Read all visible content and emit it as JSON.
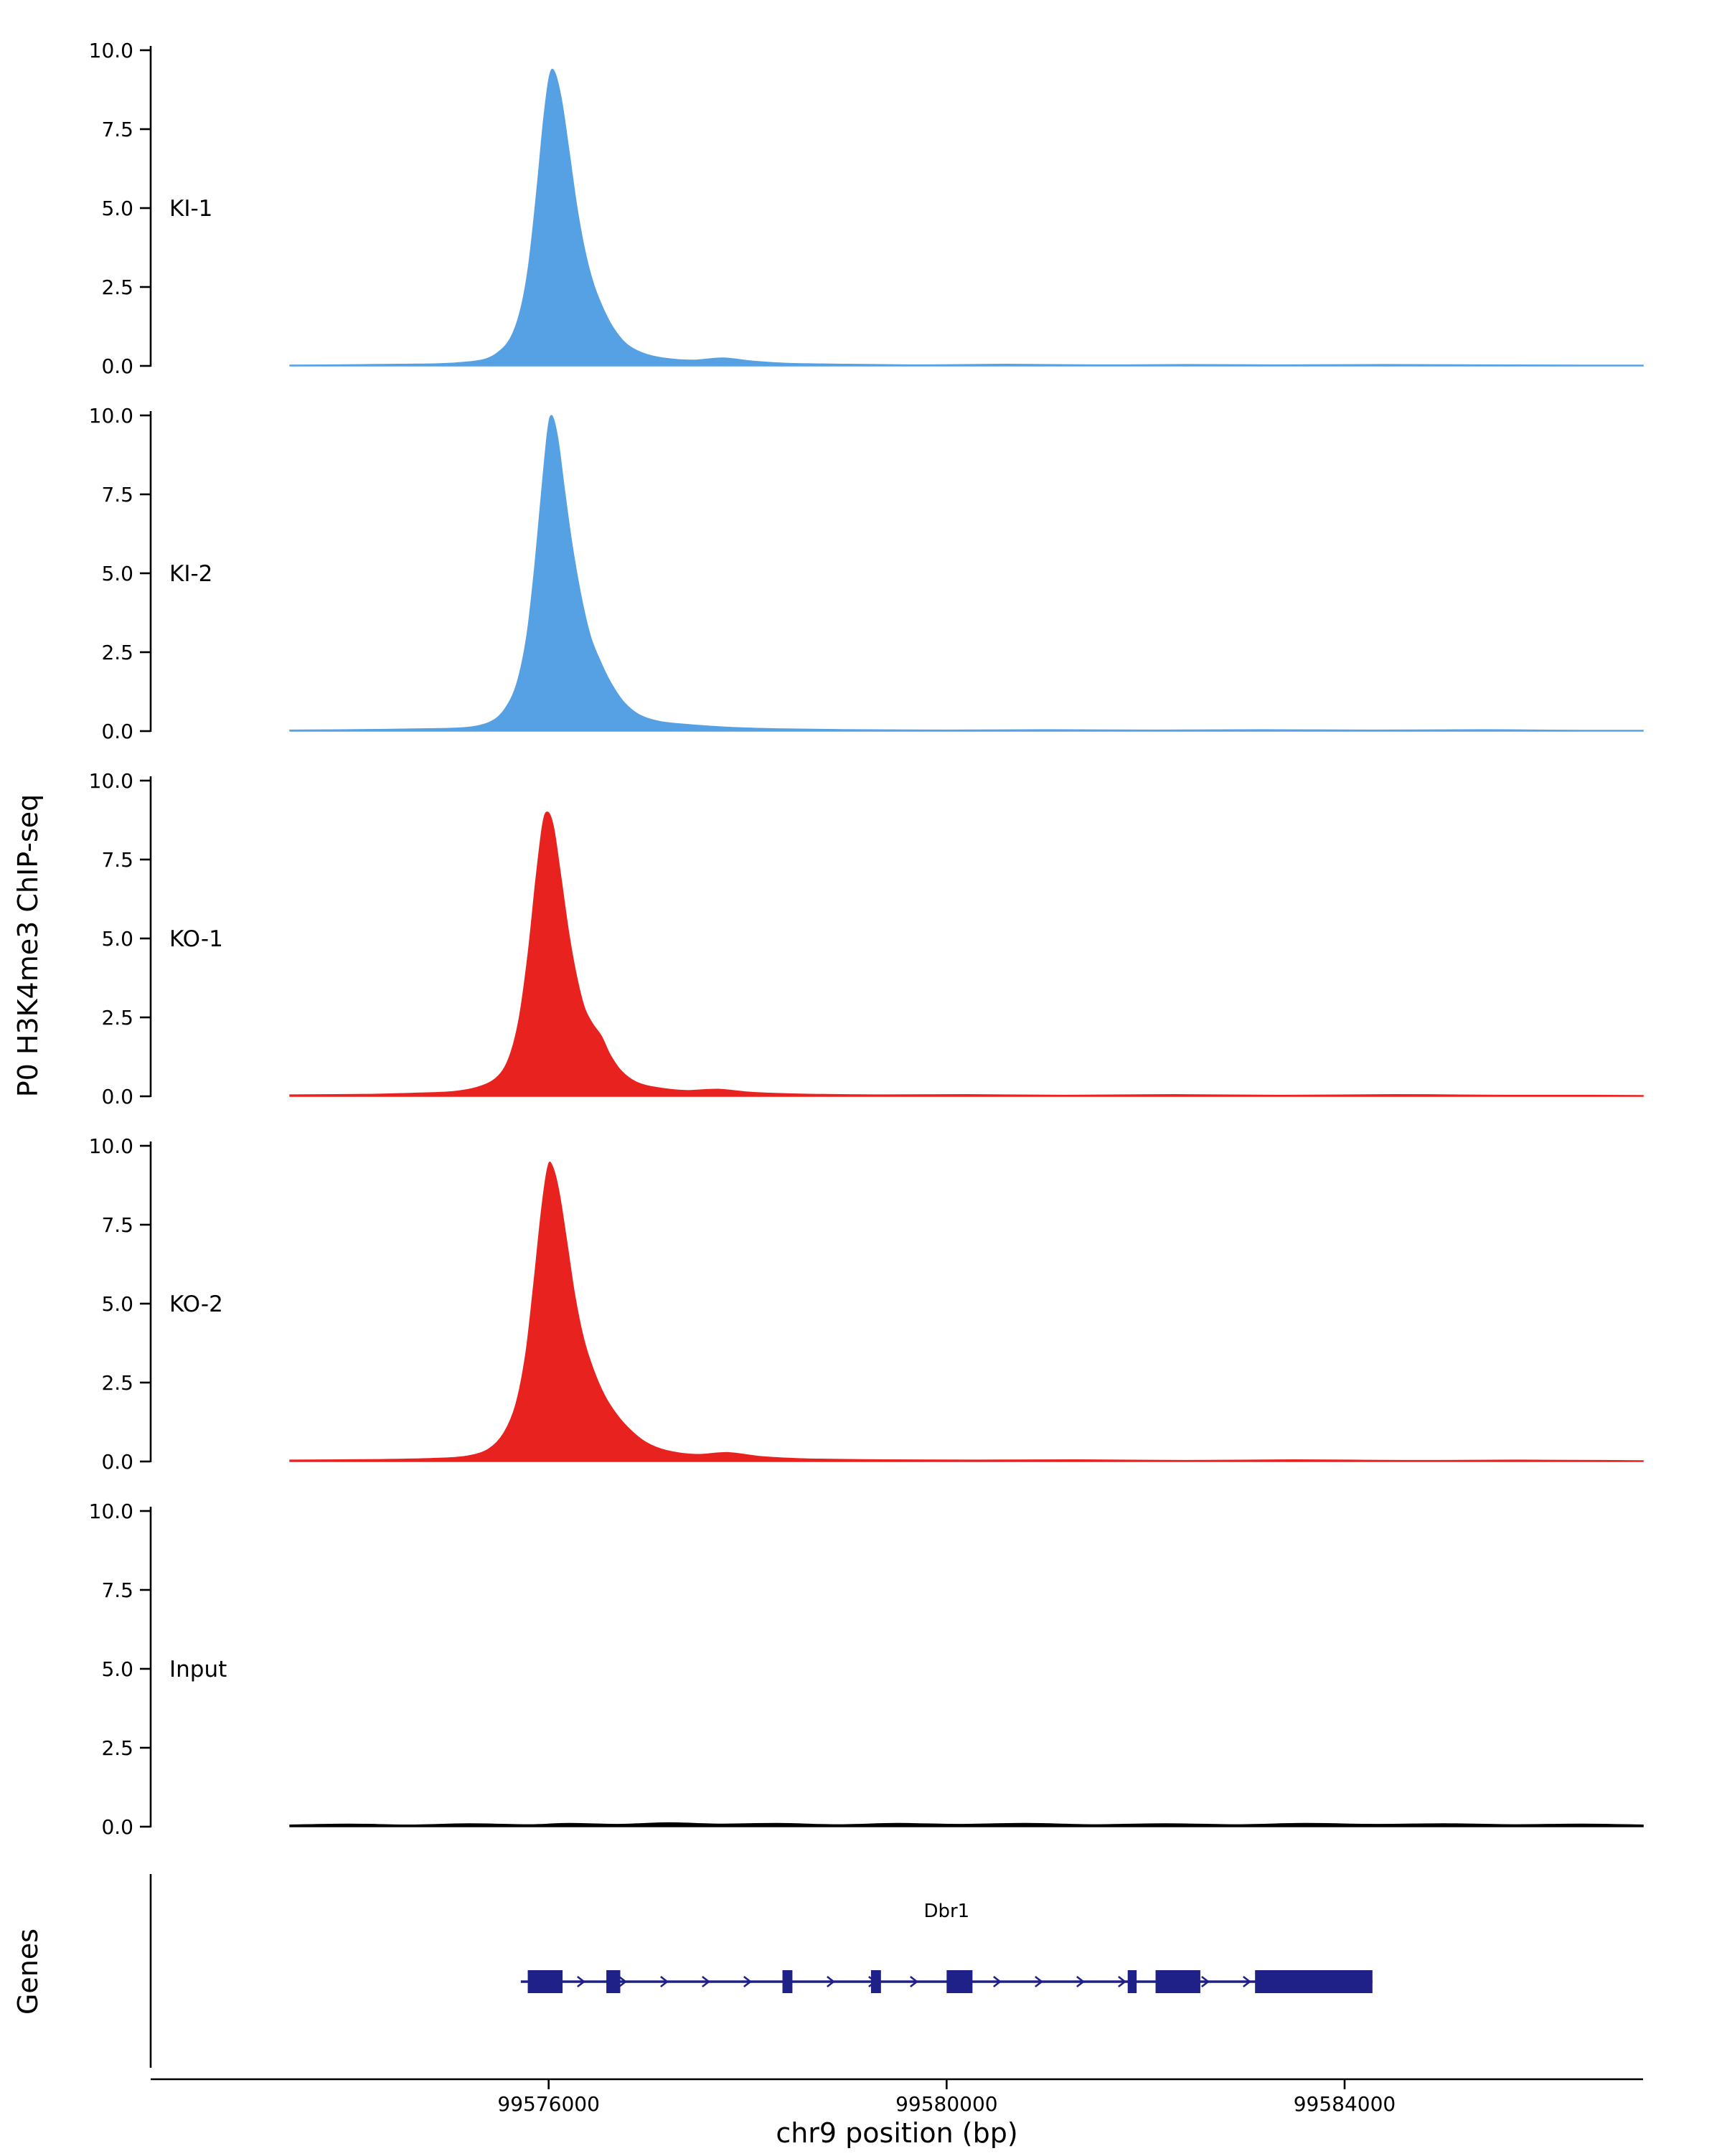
{
  "figure": {
    "y_axis_label": "P0 H3K4me3 ChIP-seq",
    "genes_label": "Genes",
    "x_axis_label": "chr9 position (bp)"
  },
  "chart_data": {
    "type": "area",
    "title": "",
    "xlabel": "chr9 position (bp)",
    "ylabel": "P0 H3K4me3 ChIP-seq",
    "x_domain": [
      99572000,
      99587000
    ],
    "x_ticks": {
      "values": [
        99576000,
        99580000,
        99584000
      ],
      "labels": [
        "99576000",
        "99580000",
        "99584000"
      ]
    },
    "y_ticks": {
      "values": [
        0,
        2.5,
        5,
        7.5,
        10
      ],
      "labels": [
        "0.0",
        "2.5",
        "5.0",
        "7.5",
        "10.0"
      ]
    },
    "ylim": [
      0,
      10
    ],
    "grid": false,
    "legend": "none",
    "tracks": [
      {
        "label": "KI-1",
        "color": "#56A0E4",
        "peak_summit_bp": 99576050,
        "peak_height": 9.3,
        "points": [
          [
            99573400,
            0.02
          ],
          [
            99574200,
            0.04
          ],
          [
            99574800,
            0.06
          ],
          [
            99575100,
            0.1
          ],
          [
            99575350,
            0.2
          ],
          [
            99575500,
            0.45
          ],
          [
            99575620,
            0.9
          ],
          [
            99575720,
            1.8
          ],
          [
            99575800,
            3.2
          ],
          [
            99575880,
            5.5
          ],
          [
            99575950,
            7.8
          ],
          [
            99576010,
            9.2
          ],
          [
            99576060,
            9.3
          ],
          [
            99576130,
            8.4
          ],
          [
            99576200,
            6.9
          ],
          [
            99576280,
            5.1
          ],
          [
            99576360,
            3.7
          ],
          [
            99576450,
            2.6
          ],
          [
            99576550,
            1.8
          ],
          [
            99576650,
            1.2
          ],
          [
            99576780,
            0.7
          ],
          [
            99576950,
            0.4
          ],
          [
            99577150,
            0.25
          ],
          [
            99577450,
            0.18
          ],
          [
            99577750,
            0.25
          ],
          [
            99578050,
            0.15
          ],
          [
            99578400,
            0.08
          ],
          [
            99579000,
            0.05
          ],
          [
            99579800,
            0.03
          ],
          [
            99580600,
            0.05
          ],
          [
            99581500,
            0.03
          ],
          [
            99582400,
            0.04
          ],
          [
            99583400,
            0.03
          ],
          [
            99584400,
            0.04
          ],
          [
            99585400,
            0.03
          ],
          [
            99586400,
            0.02
          ],
          [
            99587000,
            0.02
          ]
        ]
      },
      {
        "label": "KI-2",
        "color": "#56A0E4",
        "peak_summit_bp": 99576030,
        "peak_height": 10.0,
        "points": [
          [
            99573400,
            0.03
          ],
          [
            99574300,
            0.05
          ],
          [
            99574900,
            0.08
          ],
          [
            99575200,
            0.12
          ],
          [
            99575420,
            0.3
          ],
          [
            99575560,
            0.7
          ],
          [
            99575680,
            1.5
          ],
          [
            99575780,
            3.0
          ],
          [
            99575860,
            5.2
          ],
          [
            99575930,
            7.6
          ],
          [
            99575990,
            9.5
          ],
          [
            99576030,
            10.0
          ],
          [
            99576090,
            9.3
          ],
          [
            99576160,
            7.6
          ],
          [
            99576240,
            5.8
          ],
          [
            99576330,
            4.2
          ],
          [
            99576420,
            3.0
          ],
          [
            99576520,
            2.2
          ],
          [
            99576630,
            1.5
          ],
          [
            99576760,
            0.9
          ],
          [
            99576920,
            0.5
          ],
          [
            99577120,
            0.3
          ],
          [
            99577420,
            0.2
          ],
          [
            99577800,
            0.12
          ],
          [
            99578300,
            0.07
          ],
          [
            99579100,
            0.04
          ],
          [
            99580000,
            0.03
          ],
          [
            99581000,
            0.04
          ],
          [
            99582100,
            0.03
          ],
          [
            99583200,
            0.04
          ],
          [
            99584300,
            0.03
          ],
          [
            99585400,
            0.04
          ],
          [
            99586400,
            0.02
          ],
          [
            99587000,
            0.02
          ]
        ]
      },
      {
        "label": "KO-1",
        "color": "#E8231F",
        "peak_summit_bp": 99575990,
        "peak_height": 9.0,
        "points": [
          [
            99573400,
            0.04
          ],
          [
            99574200,
            0.06
          ],
          [
            99574700,
            0.1
          ],
          [
            99575050,
            0.15
          ],
          [
            99575300,
            0.3
          ],
          [
            99575480,
            0.6
          ],
          [
            99575600,
            1.2
          ],
          [
            99575700,
            2.4
          ],
          [
            99575790,
            4.4
          ],
          [
            99575870,
            6.8
          ],
          [
            99575940,
            8.6
          ],
          [
            99575990,
            9.0
          ],
          [
            99576050,
            8.5
          ],
          [
            99576120,
            7.0
          ],
          [
            99576200,
            5.2
          ],
          [
            99576280,
            3.8
          ],
          [
            99576360,
            2.8
          ],
          [
            99576440,
            2.3
          ],
          [
            99576530,
            1.9
          ],
          [
            99576620,
            1.3
          ],
          [
            99576730,
            0.8
          ],
          [
            99576880,
            0.45
          ],
          [
            99577080,
            0.28
          ],
          [
            99577380,
            0.18
          ],
          [
            99577700,
            0.22
          ],
          [
            99578050,
            0.12
          ],
          [
            99578500,
            0.07
          ],
          [
            99579300,
            0.04
          ],
          [
            99580200,
            0.05
          ],
          [
            99581200,
            0.03
          ],
          [
            99582300,
            0.05
          ],
          [
            99583400,
            0.03
          ],
          [
            99584500,
            0.05
          ],
          [
            99585600,
            0.03
          ],
          [
            99586500,
            0.03
          ],
          [
            99587000,
            0.02
          ]
        ]
      },
      {
        "label": "KO-2",
        "color": "#E8231F",
        "peak_summit_bp": 99576030,
        "peak_height": 9.4,
        "points": [
          [
            99573400,
            0.04
          ],
          [
            99574300,
            0.06
          ],
          [
            99574900,
            0.1
          ],
          [
            99575200,
            0.18
          ],
          [
            99575400,
            0.4
          ],
          [
            99575550,
            0.9
          ],
          [
            99575670,
            1.8
          ],
          [
            99575770,
            3.4
          ],
          [
            99575850,
            5.6
          ],
          [
            99575930,
            8.0
          ],
          [
            99575990,
            9.3
          ],
          [
            99576030,
            9.4
          ],
          [
            99576100,
            8.6
          ],
          [
            99576180,
            7.0
          ],
          [
            99576260,
            5.3
          ],
          [
            99576350,
            3.9
          ],
          [
            99576450,
            2.9
          ],
          [
            99576560,
            2.1
          ],
          [
            99576680,
            1.5
          ],
          [
            99576820,
            1.0
          ],
          [
            99576980,
            0.6
          ],
          [
            99577180,
            0.35
          ],
          [
            99577480,
            0.22
          ],
          [
            99577800,
            0.28
          ],
          [
            99578150,
            0.15
          ],
          [
            99578600,
            0.08
          ],
          [
            99579400,
            0.05
          ],
          [
            99580300,
            0.04
          ],
          [
            99581300,
            0.05
          ],
          [
            99582400,
            0.03
          ],
          [
            99583500,
            0.05
          ],
          [
            99584600,
            0.03
          ],
          [
            99585700,
            0.04
          ],
          [
            99586600,
            0.03
          ],
          [
            99587000,
            0.02
          ]
        ]
      },
      {
        "label": "Input",
        "color": "#000000",
        "peak_summit_bp": null,
        "peak_height": 0.1,
        "points": [
          [
            99573400,
            0.05
          ],
          [
            99574000,
            0.08
          ],
          [
            99574600,
            0.05
          ],
          [
            99575200,
            0.09
          ],
          [
            99575800,
            0.06
          ],
          [
            99576200,
            0.1
          ],
          [
            99576700,
            0.07
          ],
          [
            99577200,
            0.12
          ],
          [
            99577700,
            0.08
          ],
          [
            99578300,
            0.1
          ],
          [
            99578900,
            0.06
          ],
          [
            99579500,
            0.1
          ],
          [
            99580100,
            0.07
          ],
          [
            99580800,
            0.1
          ],
          [
            99581500,
            0.06
          ],
          [
            99582200,
            0.09
          ],
          [
            99582900,
            0.06
          ],
          [
            99583600,
            0.1
          ],
          [
            99584300,
            0.07
          ],
          [
            99585000,
            0.09
          ],
          [
            99585700,
            0.06
          ],
          [
            99586400,
            0.08
          ],
          [
            99587000,
            0.05
          ]
        ]
      }
    ],
    "gene_track": {
      "label": "Genes",
      "genes": [
        {
          "name": "Dbr1",
          "start": 99575720,
          "end": 99584280,
          "strand": "+",
          "color": "#1F2189",
          "exons": [
            [
              99575790,
              99576140
            ],
            [
              99576580,
              99576720
            ],
            [
              99578350,
              99578450
            ],
            [
              99579240,
              99579340
            ],
            [
              99580000,
              99580260
            ],
            [
              99581820,
              99581910
            ],
            [
              99582100,
              99582550
            ],
            [
              99583100,
              99584280
            ]
          ]
        }
      ]
    }
  }
}
